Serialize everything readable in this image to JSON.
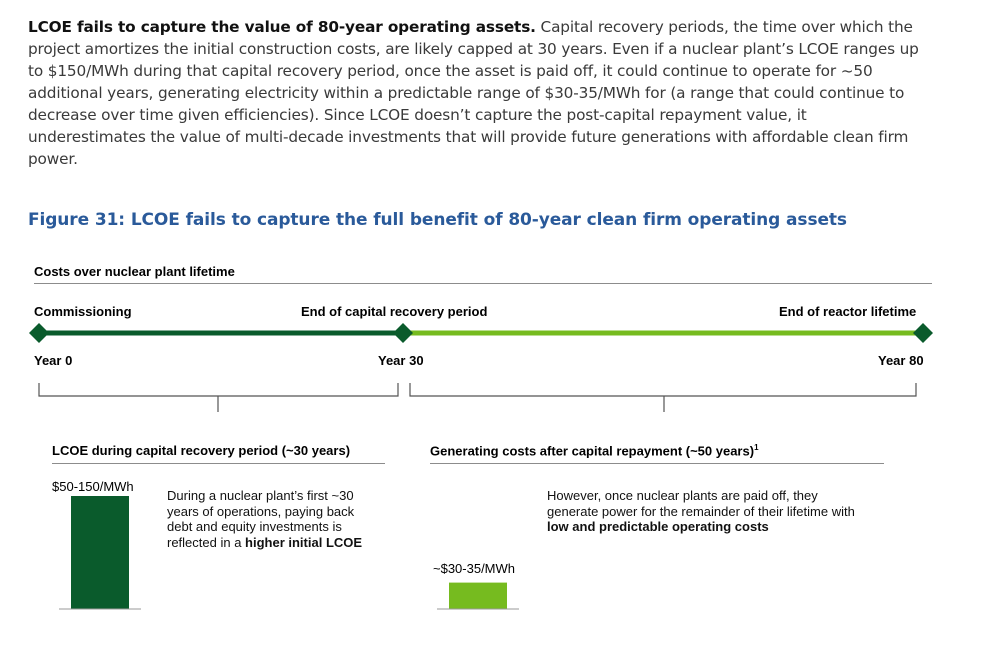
{
  "intro": {
    "lead": "LCOE fails to capture the value of 80-year operating assets.",
    "body": " Capital recovery periods, the time over which the project amortizes the initial construction costs, are likely capped at 30 years. Even if a nuclear plant’s LCOE ranges up to $150/MWh during that capital recovery period, once the asset is paid off, it could continue to operate for ~50 additional years, generating electricity within a predictable range of $30-35/MWh for (a range that could continue to decrease over time given efficiencies). Since LCOE doesn’t capture the post-capital repayment value, it underestimates the value of multi-decade investments that will provide future generations with affordable clean firm power."
  },
  "figure": {
    "title": "Figure 31: LCOE fails to capture the full benefit of 80-year clean firm operating assets",
    "section_label": "Costs over nuclear plant lifetime"
  },
  "timeline": {
    "milestones": [
      {
        "label": "Commissioning",
        "year_label": "Year 0",
        "year": 0
      },
      {
        "label": "End of capital recovery period",
        "year_label": "Year 30",
        "year": 30
      },
      {
        "label": "End of reactor lifetime",
        "year_label": "Year 80",
        "year": 80
      }
    ],
    "colors": {
      "recovery": "#0a5b2c",
      "operating": "#76bb1f"
    }
  },
  "phases": {
    "recovery": {
      "title": "LCOE during capital recovery period (~30 years)",
      "bar_label": "$50-150/MWh",
      "bar_value_max": 150,
      "desc_pre": "During a nuclear plant’s first ~30 years of operations, paying back debt and equity investments is reflected in a ",
      "desc_bold": "higher initial LCOE"
    },
    "operating": {
      "title": "Generating costs after capital repayment (~50 years)",
      "title_sup": "1",
      "bar_label": "~$30-35/MWh",
      "bar_value_max": 35,
      "desc_pre": "However, once nuclear plants are paid off, they generate power for the remainder of their lifetime with ",
      "desc_bold": "low and predictable operating costs"
    }
  }
}
